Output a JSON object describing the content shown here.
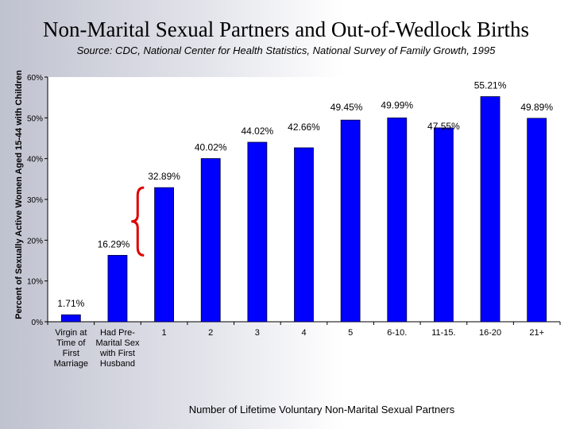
{
  "title": "Non-Marital Sexual Partners and Out-of-Wedlock Births",
  "subtitle": "Source: CDC, National Center for Health Statistics, National Survey of Family Growth, 1995",
  "chart_data": {
    "type": "bar",
    "title": "Non-Marital Sexual Partners and Out-of-Wedlock Births",
    "xlabel": "Number of Lifetime Voluntary Non-Marital Sexual Partners",
    "ylabel": "Percent of Sexually Active Women Aged 15-44 with Children",
    "ylim": [
      0,
      60
    ],
    "yticks": [
      "0%",
      "10%",
      "20%",
      "30%",
      "40%",
      "50%",
      "60%"
    ],
    "grid": false,
    "bar_color": "#0000ff",
    "annotation_color": "#dd0000",
    "categories": [
      [
        "Virgin at",
        "Time of",
        "First",
        "Marriage"
      ],
      [
        "Had Pre-",
        "Marital Sex",
        "with First",
        "Husband"
      ],
      [
        "1"
      ],
      [
        "2"
      ],
      [
        "3"
      ],
      [
        "4"
      ],
      [
        "5"
      ],
      [
        "6-10."
      ],
      [
        "11-15."
      ],
      [
        "16-20"
      ],
      [
        "21+"
      ]
    ],
    "values": [
      1.71,
      16.29,
      32.89,
      40.02,
      44.02,
      42.66,
      49.45,
      49.99,
      47.55,
      55.21,
      49.89
    ],
    "data_labels": [
      "1.71%",
      "16.29%",
      "32.89%",
      "40.02%",
      "44.02%",
      "42.66%",
      "49.45%",
      "49.99%",
      "47.55%",
      "55.21%",
      "49.89%"
    ],
    "annotation": {
      "type": "brace",
      "between": [
        "Had Pre-Marital Sex with First Husband",
        "1"
      ]
    }
  }
}
